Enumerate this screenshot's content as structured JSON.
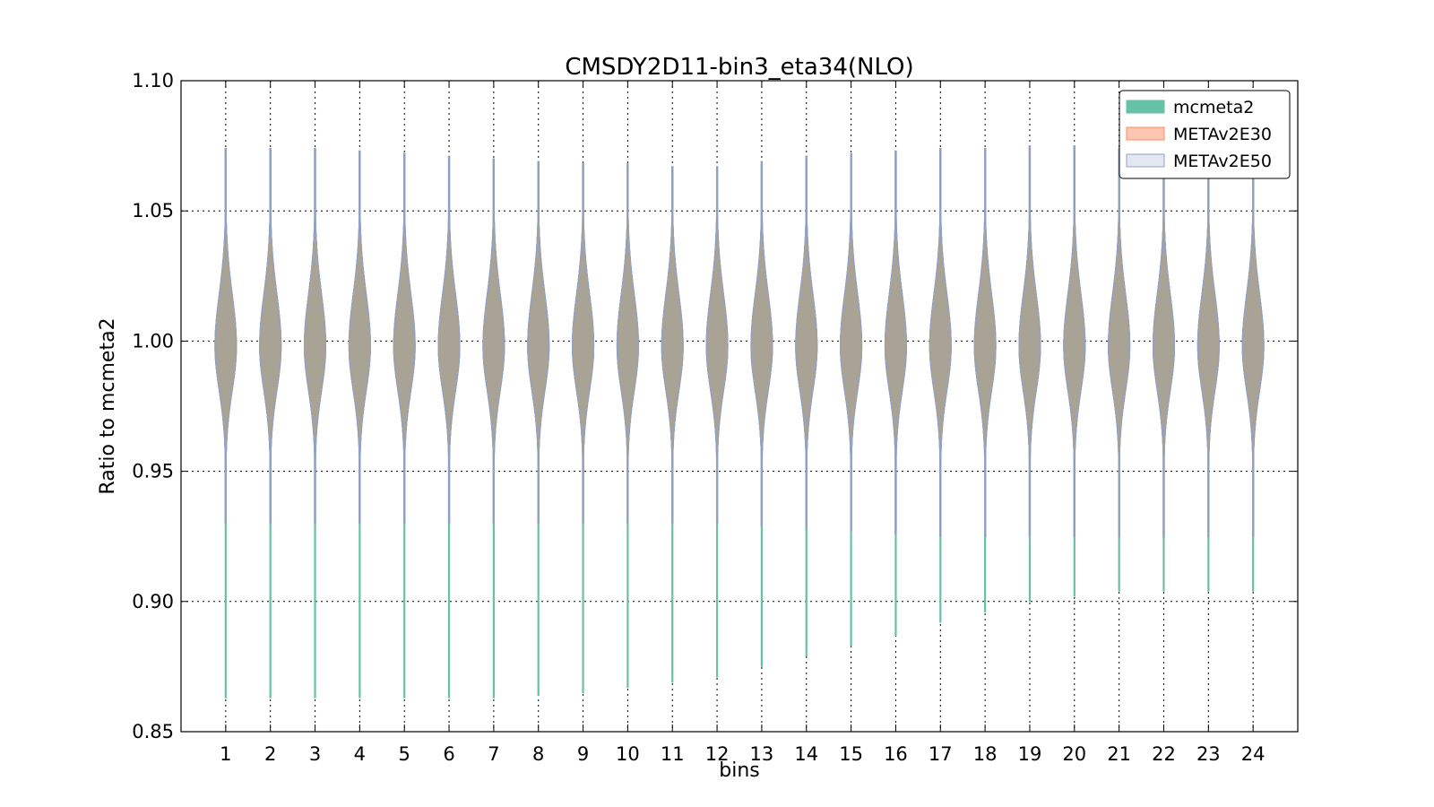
{
  "chart_data": {
    "type": "violin",
    "title": "CMSDY2D11-bin3_eta34(NLO)",
    "xlabel": "bins",
    "ylabel": "Ratio to mcmeta2",
    "xlim": [
      0,
      25
    ],
    "ylim": [
      0.85,
      1.1
    ],
    "categories": [
      "1",
      "2",
      "3",
      "4",
      "5",
      "6",
      "7",
      "8",
      "9",
      "10",
      "11",
      "12",
      "13",
      "14",
      "15",
      "16",
      "17",
      "18",
      "19",
      "20",
      "21",
      "22",
      "23",
      "24"
    ],
    "yticks": [
      "0.85",
      "0.90",
      "0.95",
      "1.00",
      "1.05",
      "1.10"
    ],
    "grid": true,
    "legend_position": "top-right",
    "series": [
      {
        "name": "mcmeta2",
        "color": "#66c2a5",
        "min": [
          0.863,
          0.863,
          0.863,
          0.863,
          0.863,
          0.863,
          0.863,
          0.864,
          0.865,
          0.867,
          0.869,
          0.871,
          0.875,
          0.879,
          0.883,
          0.887,
          0.892,
          0.896,
          0.9,
          0.902,
          0.904,
          0.904,
          0.904,
          0.904
        ],
        "max": [
          1.074,
          1.074,
          1.074,
          1.073,
          1.072,
          1.071,
          1.07,
          1.069,
          1.068,
          1.068,
          1.067,
          1.067,
          1.069,
          1.071,
          1.072,
          1.073,
          1.074,
          1.074,
          1.075,
          1.075,
          1.074,
          1.074,
          1.074,
          1.074
        ]
      },
      {
        "name": "METAv2E30",
        "color": "#fc8d62",
        "min": [
          0.93,
          0.93,
          0.93,
          0.93,
          0.93,
          0.93,
          0.93,
          0.93,
          0.93,
          0.93,
          0.93,
          0.93,
          0.929,
          0.928,
          0.927,
          0.926,
          0.925,
          0.925,
          0.925,
          0.925,
          0.925,
          0.925,
          0.925,
          0.925
        ],
        "max": [
          1.074,
          1.074,
          1.074,
          1.073,
          1.072,
          1.071,
          1.07,
          1.069,
          1.068,
          1.068,
          1.067,
          1.067,
          1.069,
          1.071,
          1.072,
          1.073,
          1.074,
          1.074,
          1.075,
          1.075,
          1.074,
          1.074,
          1.074,
          1.074
        ]
      },
      {
        "name": "METAv2E50",
        "color": "#8da0cb",
        "min": [
          0.93,
          0.93,
          0.93,
          0.93,
          0.93,
          0.93,
          0.93,
          0.93,
          0.93,
          0.93,
          0.93,
          0.93,
          0.929,
          0.928,
          0.927,
          0.926,
          0.925,
          0.925,
          0.925,
          0.925,
          0.925,
          0.925,
          0.925,
          0.925
        ],
        "max": [
          1.074,
          1.074,
          1.074,
          1.073,
          1.072,
          1.071,
          1.07,
          1.069,
          1.068,
          1.068,
          1.067,
          1.067,
          1.069,
          1.071,
          1.072,
          1.073,
          1.074,
          1.074,
          1.075,
          1.075,
          1.074,
          1.074,
          1.074,
          1.074
        ]
      }
    ]
  }
}
